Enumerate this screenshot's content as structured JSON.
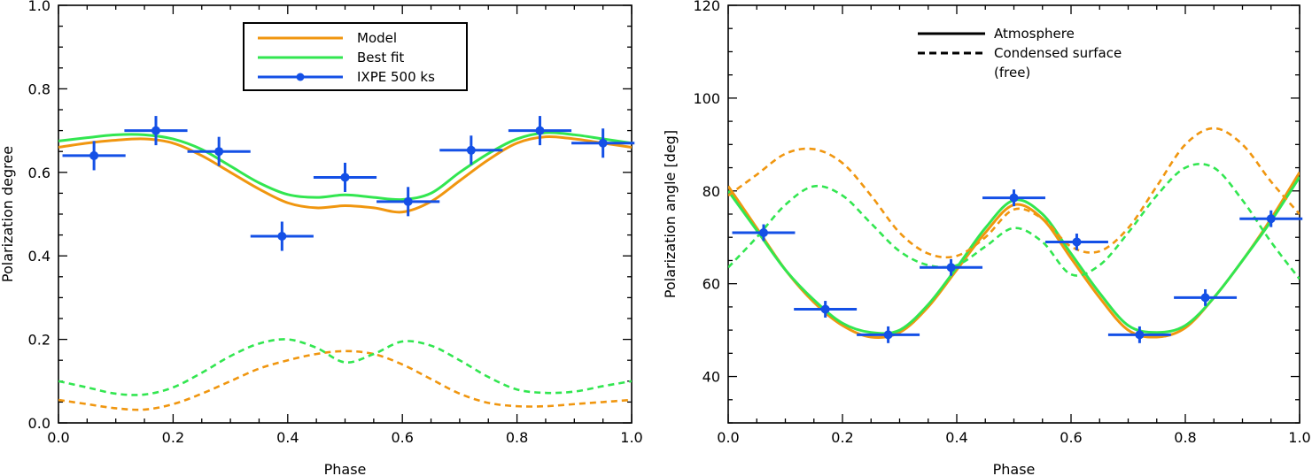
{
  "colors": {
    "model": "#F0960F",
    "bestfit": "#32E650",
    "ixpe": "#1450E6",
    "axis": "#000000"
  },
  "chart_data": [
    {
      "type": "line",
      "xlabel": "Phase",
      "ylabel": "Polarization degree",
      "xlim": [
        0.0,
        1.0
      ],
      "ylim": [
        0.0,
        1.0
      ],
      "xticks": [
        "0.0",
        "0.2",
        "0.4",
        "0.6",
        "0.8",
        "1.0"
      ],
      "yticks": [
        "0.0",
        "0.2",
        "0.4",
        "0.6",
        "0.8",
        "1.0"
      ],
      "legend": {
        "position": "top-center",
        "entries": [
          {
            "label": "Model",
            "color": "#F0960F",
            "style": "solid"
          },
          {
            "label": "Best fit",
            "color": "#32E650",
            "style": "solid"
          },
          {
            "label": "IXPE 500 ks",
            "color": "#1450E6",
            "style": "errorbar"
          }
        ]
      },
      "series": [
        {
          "name": "Model (atmosphere)",
          "color": "#F0960F",
          "style": "solid",
          "x": [
            0.0,
            0.05,
            0.1,
            0.15,
            0.2,
            0.25,
            0.3,
            0.35,
            0.4,
            0.45,
            0.5,
            0.55,
            0.6,
            0.65,
            0.7,
            0.75,
            0.8,
            0.85,
            0.9,
            0.95,
            1.0
          ],
          "y": [
            0.66,
            0.67,
            0.677,
            0.68,
            0.67,
            0.64,
            0.6,
            0.56,
            0.527,
            0.515,
            0.52,
            0.515,
            0.505,
            0.53,
            0.58,
            0.63,
            0.67,
            0.685,
            0.68,
            0.67,
            0.66
          ]
        },
        {
          "name": "Best fit (atmosphere)",
          "color": "#32E650",
          "style": "solid",
          "x": [
            0.0,
            0.05,
            0.1,
            0.15,
            0.2,
            0.25,
            0.3,
            0.35,
            0.4,
            0.45,
            0.5,
            0.55,
            0.6,
            0.65,
            0.7,
            0.75,
            0.8,
            0.85,
            0.9,
            0.95,
            1.0
          ],
          "y": [
            0.675,
            0.683,
            0.69,
            0.69,
            0.68,
            0.655,
            0.615,
            0.575,
            0.547,
            0.54,
            0.546,
            0.54,
            0.535,
            0.55,
            0.6,
            0.645,
            0.68,
            0.695,
            0.69,
            0.68,
            0.67
          ]
        },
        {
          "name": "Model (condensed surface)",
          "color": "#F0960F",
          "style": "dashed",
          "x": [
            0.0,
            0.05,
            0.1,
            0.15,
            0.2,
            0.25,
            0.3,
            0.35,
            0.4,
            0.45,
            0.5,
            0.55,
            0.6,
            0.65,
            0.7,
            0.75,
            0.8,
            0.85,
            0.9,
            0.95,
            1.0
          ],
          "y": [
            0.055,
            0.045,
            0.035,
            0.032,
            0.045,
            0.07,
            0.1,
            0.13,
            0.15,
            0.165,
            0.172,
            0.165,
            0.14,
            0.105,
            0.07,
            0.048,
            0.04,
            0.04,
            0.045,
            0.05,
            0.055
          ]
        },
        {
          "name": "Best fit (condensed surface)",
          "color": "#32E650",
          "style": "dashed",
          "x": [
            0.0,
            0.05,
            0.1,
            0.15,
            0.2,
            0.25,
            0.3,
            0.35,
            0.4,
            0.45,
            0.5,
            0.55,
            0.6,
            0.65,
            0.7,
            0.75,
            0.8,
            0.85,
            0.9,
            0.95,
            1.0
          ],
          "y": [
            0.1,
            0.085,
            0.07,
            0.068,
            0.085,
            0.12,
            0.16,
            0.19,
            0.2,
            0.18,
            0.145,
            0.165,
            0.195,
            0.185,
            0.15,
            0.11,
            0.08,
            0.072,
            0.075,
            0.088,
            0.1
          ]
        }
      ],
      "errorbars": {
        "name": "IXPE 500 ks",
        "color": "#1450E6",
        "x": [
          0.062,
          0.17,
          0.28,
          0.39,
          0.5,
          0.61,
          0.72,
          0.84,
          0.95
        ],
        "xerr": [
          0.055,
          0.055,
          0.055,
          0.055,
          0.055,
          0.055,
          0.055,
          0.055,
          0.055
        ],
        "y": [
          0.64,
          0.7,
          0.65,
          0.447,
          0.588,
          0.53,
          0.653,
          0.7,
          0.67
        ],
        "yerr": [
          0.035,
          0.035,
          0.035,
          0.035,
          0.035,
          0.035,
          0.035,
          0.035,
          0.035
        ]
      }
    },
    {
      "type": "line",
      "xlabel": "Phase",
      "ylabel": "Polarization angle [deg]",
      "xlim": [
        0.0,
        1.0
      ],
      "ylim": [
        30,
        120
      ],
      "xticks": [
        "0.0",
        "0.2",
        "0.4",
        "0.6",
        "0.8",
        "1.0"
      ],
      "yticks": [
        "40",
        "60",
        "80",
        "100",
        "120"
      ],
      "legend": {
        "position": "top-center",
        "entries": [
          {
            "label": "Atmosphere",
            "style": "solid"
          },
          {
            "label": "Condensed surface",
            "style": "dashed"
          },
          {
            "label": "(free)",
            "style": "none"
          }
        ]
      },
      "series": [
        {
          "name": "Model (atmosphere)",
          "color": "#F0960F",
          "style": "solid",
          "x": [
            0.0,
            0.05,
            0.1,
            0.15,
            0.2,
            0.25,
            0.3,
            0.35,
            0.4,
            0.45,
            0.5,
            0.55,
            0.6,
            0.65,
            0.7,
            0.75,
            0.8,
            0.85,
            0.9,
            0.95,
            1.0
          ],
          "y": [
            81,
            72,
            63,
            56,
            51,
            48.5,
            49.5,
            55,
            63,
            71,
            77,
            74,
            65.5,
            57,
            50,
            48.5,
            50.5,
            57,
            65,
            74,
            84
          ]
        },
        {
          "name": "Best fit (atmosphere)",
          "color": "#32E650",
          "style": "solid",
          "x": [
            0.0,
            0.05,
            0.1,
            0.15,
            0.2,
            0.25,
            0.3,
            0.35,
            0.4,
            0.45,
            0.5,
            0.55,
            0.6,
            0.65,
            0.7,
            0.75,
            0.8,
            0.85,
            0.9,
            0.95,
            1.0
          ],
          "y": [
            80,
            71.5,
            63,
            56.5,
            51.5,
            49.5,
            50,
            55.5,
            63.5,
            72,
            78,
            75,
            66.5,
            58,
            51,
            49.5,
            51,
            57,
            65,
            73.5,
            83
          ]
        },
        {
          "name": "Model (condensed surface)",
          "color": "#F0960F",
          "style": "dashed",
          "x": [
            0.0,
            0.05,
            0.1,
            0.15,
            0.2,
            0.25,
            0.3,
            0.35,
            0.4,
            0.45,
            0.5,
            0.55,
            0.6,
            0.65,
            0.7,
            0.75,
            0.8,
            0.85,
            0.9,
            0.95,
            1.0
          ],
          "y": [
            79,
            83.5,
            88,
            89,
            86,
            79,
            71,
            66.5,
            66,
            70,
            76,
            74,
            68,
            67,
            72,
            81,
            90,
            93.5,
            90,
            82,
            75
          ]
        },
        {
          "name": "Best fit (condensed surface)",
          "color": "#32E650",
          "style": "dashed",
          "x": [
            0.0,
            0.05,
            0.1,
            0.15,
            0.2,
            0.25,
            0.3,
            0.35,
            0.4,
            0.45,
            0.5,
            0.55,
            0.6,
            0.65,
            0.7,
            0.75,
            0.8,
            0.85,
            0.9,
            0.95,
            1.0
          ],
          "y": [
            63.5,
            70,
            77,
            81,
            79,
            73,
            67,
            64,
            64,
            68,
            72,
            69,
            62,
            64,
            71,
            79,
            85,
            85,
            78,
            69,
            61
          ]
        }
      ],
      "errorbars": {
        "name": "IXPE 500 ks",
        "color": "#1450E6",
        "x": [
          0.062,
          0.17,
          0.28,
          0.39,
          0.5,
          0.61,
          0.72,
          0.835,
          0.95
        ],
        "xerr": [
          0.055,
          0.055,
          0.055,
          0.055,
          0.055,
          0.055,
          0.055,
          0.055,
          0.055
        ],
        "y": [
          71,
          54.5,
          49,
          63.5,
          78.5,
          69,
          49,
          57,
          74
        ],
        "yerr": [
          1.8,
          1.8,
          1.8,
          1.8,
          1.8,
          1.8,
          1.8,
          1.8,
          1.8
        ]
      }
    }
  ]
}
